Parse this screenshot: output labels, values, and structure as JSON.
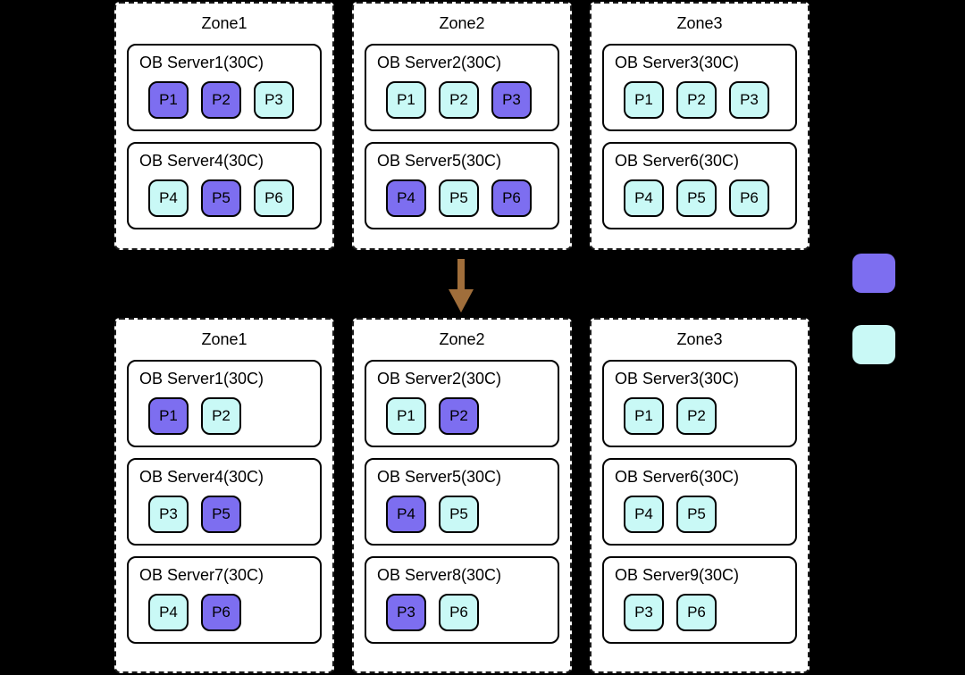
{
  "palette": {
    "purple": "#7d6ef0",
    "cyan": "#c9f9f6",
    "arrow": "#a06e3b",
    "zone_background": "#ffffff",
    "page_background": "#000000",
    "border": "#000000"
  },
  "legend": {
    "swatches": [
      {
        "variant": "purple"
      },
      {
        "variant": "cyan"
      }
    ]
  },
  "before": {
    "zones": [
      {
        "title": "Zone1",
        "servers": [
          {
            "title": "OB Server1(30C)",
            "partitions": [
              {
                "label": "P1",
                "variant": "purple"
              },
              {
                "label": "P2",
                "variant": "purple"
              },
              {
                "label": "P3",
                "variant": "cyan"
              }
            ]
          },
          {
            "title": "OB Server4(30C)",
            "partitions": [
              {
                "label": "P4",
                "variant": "cyan"
              },
              {
                "label": "P5",
                "variant": "purple"
              },
              {
                "label": "P6",
                "variant": "cyan"
              }
            ]
          }
        ]
      },
      {
        "title": "Zone2",
        "servers": [
          {
            "title": "OB Server2(30C)",
            "partitions": [
              {
                "label": "P1",
                "variant": "cyan"
              },
              {
                "label": "P2",
                "variant": "cyan"
              },
              {
                "label": "P3",
                "variant": "purple"
              }
            ]
          },
          {
            "title": "OB Server5(30C)",
            "partitions": [
              {
                "label": "P4",
                "variant": "purple"
              },
              {
                "label": "P5",
                "variant": "cyan"
              },
              {
                "label": "P6",
                "variant": "purple"
              }
            ]
          }
        ]
      },
      {
        "title": "Zone3",
        "servers": [
          {
            "title": "OB Server3(30C)",
            "partitions": [
              {
                "label": "P1",
                "variant": "cyan"
              },
              {
                "label": "P2",
                "variant": "cyan"
              },
              {
                "label": "P3",
                "variant": "cyan"
              }
            ]
          },
          {
            "title": "OB Server6(30C)",
            "partitions": [
              {
                "label": "P4",
                "variant": "cyan"
              },
              {
                "label": "P5",
                "variant": "cyan"
              },
              {
                "label": "P6",
                "variant": "cyan"
              }
            ]
          }
        ]
      }
    ]
  },
  "after": {
    "zones": [
      {
        "title": "Zone1",
        "servers": [
          {
            "title": "OB Server1(30C)",
            "partitions": [
              {
                "label": "P1",
                "variant": "purple"
              },
              {
                "label": "P2",
                "variant": "cyan"
              }
            ]
          },
          {
            "title": "OB Server4(30C)",
            "partitions": [
              {
                "label": "P3",
                "variant": "cyan"
              },
              {
                "label": "P5",
                "variant": "purple"
              }
            ]
          },
          {
            "title": "OB Server7(30C)",
            "partitions": [
              {
                "label": "P4",
                "variant": "cyan"
              },
              {
                "label": "P6",
                "variant": "purple"
              }
            ]
          }
        ]
      },
      {
        "title": "Zone2",
        "servers": [
          {
            "title": "OB Server2(30C)",
            "partitions": [
              {
                "label": "P1",
                "variant": "cyan"
              },
              {
                "label": "P2",
                "variant": "purple"
              }
            ]
          },
          {
            "title": "OB Server5(30C)",
            "partitions": [
              {
                "label": "P4",
                "variant": "purple"
              },
              {
                "label": "P5",
                "variant": "cyan"
              }
            ]
          },
          {
            "title": "OB Server8(30C)",
            "partitions": [
              {
                "label": "P3",
                "variant": "purple"
              },
              {
                "label": "P6",
                "variant": "cyan"
              }
            ]
          }
        ]
      },
      {
        "title": "Zone3",
        "servers": [
          {
            "title": "OB Server3(30C)",
            "partitions": [
              {
                "label": "P1",
                "variant": "cyan"
              },
              {
                "label": "P2",
                "variant": "cyan"
              }
            ]
          },
          {
            "title": "OB Server6(30C)",
            "partitions": [
              {
                "label": "P4",
                "variant": "cyan"
              },
              {
                "label": "P5",
                "variant": "cyan"
              }
            ]
          },
          {
            "title": "OB Server9(30C)",
            "partitions": [
              {
                "label": "P3",
                "variant": "cyan"
              },
              {
                "label": "P6",
                "variant": "cyan"
              }
            ]
          }
        ]
      }
    ]
  }
}
